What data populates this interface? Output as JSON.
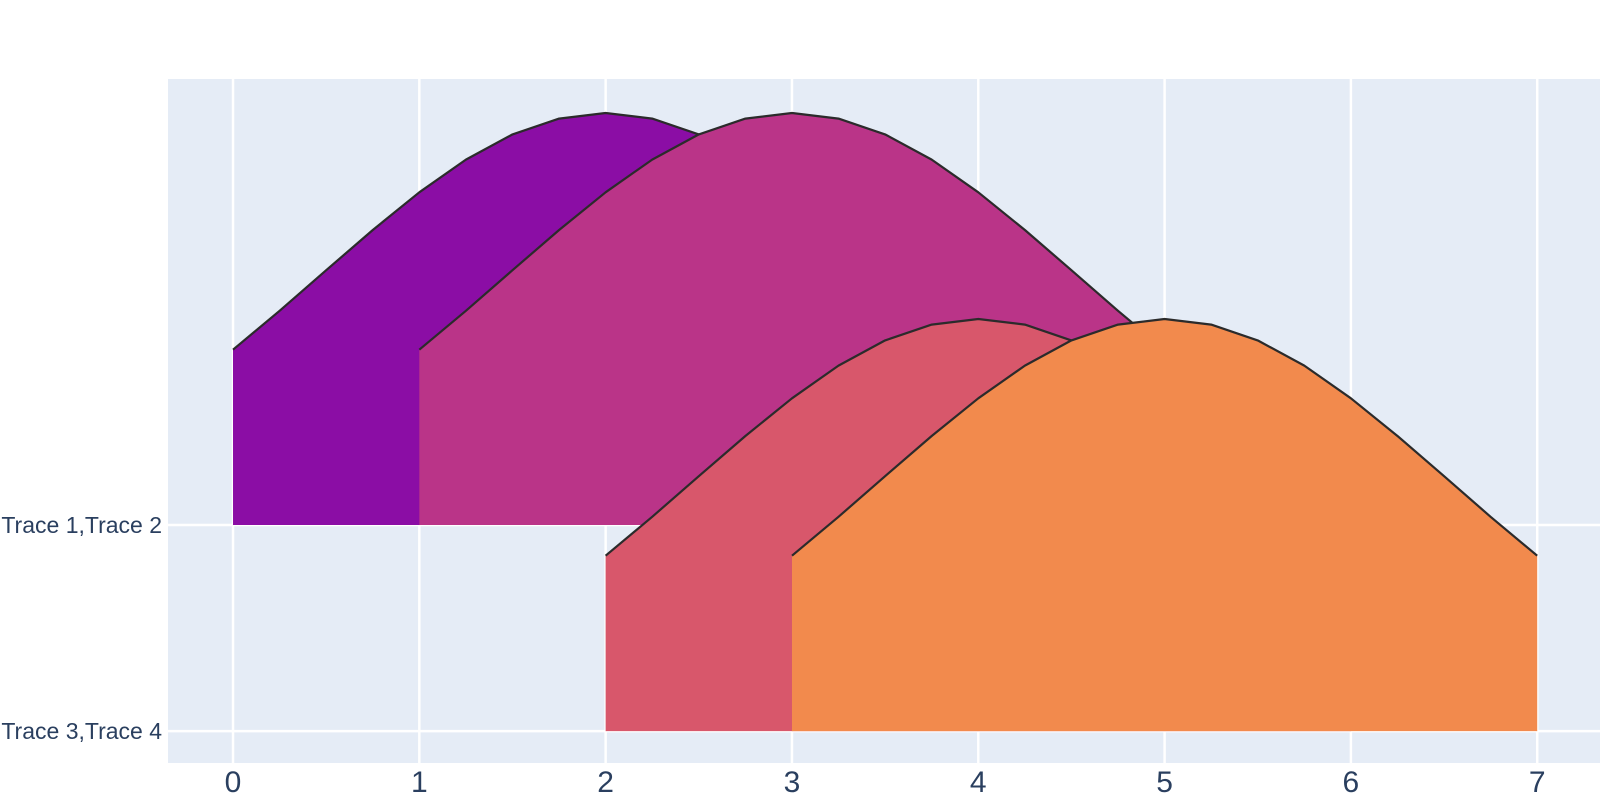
{
  "page": {
    "background": "#FFFFFF"
  },
  "chart": {
    "plot_bgcolor": "#E5ECF6",
    "grid_color": "#FFFFFF",
    "tick_font_color": "#2A3F5F",
    "curve_line_color": "#2B2B2B",
    "x_tick_font_size": 30,
    "y_tick_font_size": 23
  },
  "chart_data": {
    "type": "area",
    "variant": "ridgeline-overlapping-gaussian-bumps",
    "title": "",
    "xlabel": "",
    "ylabel": "",
    "grid": true,
    "legend_visible": false,
    "xlim": [
      -0.349,
      7.337
    ],
    "ylim": [
      -0.155,
      3.165
    ],
    "x_ticks": [
      {
        "value": 0,
        "label": "0"
      },
      {
        "value": 1,
        "label": "1"
      },
      {
        "value": 2,
        "label": "2"
      },
      {
        "value": 3,
        "label": "3"
      },
      {
        "value": 4,
        "label": "4"
      },
      {
        "value": 5,
        "label": "5"
      },
      {
        "value": 6,
        "label": "6"
      },
      {
        "value": 7,
        "label": "7"
      }
    ],
    "y_ticks": [
      {
        "value": 1,
        "label": "Trace 1,Trace 2"
      },
      {
        "value": 0,
        "label": "Trace 3,Trace 4"
      }
    ],
    "series": [
      {
        "name": "Trace 1",
        "color": "#8B0DA5",
        "base": 1,
        "x": [
          0,
          0.25,
          0.5,
          0.75,
          1,
          1.25,
          1.5,
          1.75,
          2,
          2.25,
          2.5,
          2.75,
          3,
          3.25,
          3.5,
          3.75,
          4
        ],
        "y": [
          1.851,
          2.04,
          2.237,
          2.432,
          2.615,
          2.774,
          2.896,
          2.973,
          3.0,
          2.973,
          2.896,
          2.774,
          2.615,
          2.432,
          2.237,
          2.04,
          1.851
        ]
      },
      {
        "name": "Trace 2",
        "color": "#BA3488",
        "base": 1,
        "x": [
          1,
          1.25,
          1.5,
          1.75,
          2,
          2.25,
          2.5,
          2.75,
          3,
          3.25,
          3.5,
          3.75,
          4,
          4.25,
          4.5,
          4.75,
          5
        ],
        "y": [
          1.851,
          2.04,
          2.237,
          2.432,
          2.615,
          2.774,
          2.896,
          2.973,
          3.0,
          2.973,
          2.896,
          2.774,
          2.615,
          2.432,
          2.237,
          2.04,
          1.851
        ]
      },
      {
        "name": "Trace 3",
        "color": "#D8576B",
        "base": 0,
        "x": [
          2,
          2.25,
          2.5,
          2.75,
          3,
          3.25,
          3.5,
          3.75,
          4,
          4.25,
          4.5,
          4.75,
          5,
          5.25,
          5.5,
          5.75,
          6
        ],
        "y": [
          0.851,
          1.04,
          1.237,
          1.432,
          1.615,
          1.774,
          1.896,
          1.973,
          2.0,
          1.973,
          1.896,
          1.774,
          1.615,
          1.432,
          1.237,
          1.04,
          0.851
        ]
      },
      {
        "name": "Trace 4",
        "color": "#F28A4D",
        "base": 0,
        "x": [
          3,
          3.25,
          3.5,
          3.75,
          4,
          4.25,
          4.5,
          4.75,
          5,
          5.25,
          5.5,
          5.75,
          6,
          6.25,
          6.5,
          6.75,
          7
        ],
        "y": [
          0.851,
          1.04,
          1.237,
          1.432,
          1.615,
          1.774,
          1.896,
          1.973,
          2.0,
          1.973,
          1.896,
          1.774,
          1.615,
          1.432,
          1.237,
          1.04,
          0.851
        ]
      }
    ]
  }
}
